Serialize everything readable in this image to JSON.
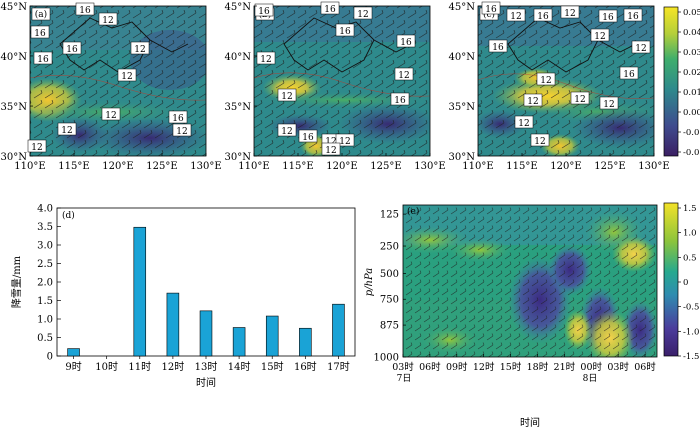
{
  "maps": {
    "panels": [
      {
        "label": "(a)",
        "contours": [
          {
            "text": "16"
          },
          {
            "text": "12"
          },
          {
            "text": "16"
          },
          {
            "text": "16"
          },
          {
            "text": "12"
          },
          {
            "text": "16"
          },
          {
            "text": "12"
          },
          {
            "text": "12"
          },
          {
            "text": "16"
          },
          {
            "text": "12"
          },
          {
            "text": "12"
          },
          {
            "text": "12"
          }
        ]
      },
      {
        "label": "(b)",
        "contours": [
          {
            "text": "16"
          },
          {
            "text": "16"
          },
          {
            "text": "12"
          },
          {
            "text": "16"
          },
          {
            "text": "12"
          },
          {
            "text": "16"
          },
          {
            "text": "12"
          },
          {
            "text": "12"
          },
          {
            "text": "16"
          },
          {
            "text": "12"
          },
          {
            "text": "16"
          },
          {
            "text": "12"
          },
          {
            "text": "12"
          },
          {
            "text": "12"
          }
        ]
      },
      {
        "label": "(c)",
        "contours": [
          {
            "text": "16"
          },
          {
            "text": "12"
          },
          {
            "text": "16"
          },
          {
            "text": "12"
          },
          {
            "text": "16"
          },
          {
            "text": "16"
          },
          {
            "text": "12"
          },
          {
            "text": "16"
          },
          {
            "text": "12"
          },
          {
            "text": "16"
          },
          {
            "text": "12"
          },
          {
            "text": "12"
          },
          {
            "text": "12"
          },
          {
            "text": "12"
          },
          {
            "text": "12"
          },
          {
            "text": "12"
          }
        ]
      }
    ],
    "lat_labels": [
      "45°N",
      "40°N",
      "35°N",
      "30°N"
    ],
    "lon_labels": [
      "110°E",
      "115°E",
      "120°E",
      "125°E",
      "130°E"
    ],
    "colorbar_ticks": [
      "0.05",
      "0.04",
      "0.03",
      "0.02",
      "0.01",
      "0.00",
      "-0.01",
      "-0.02"
    ]
  },
  "chart_data": [
    {
      "type": "bar",
      "panel_label": "(d)",
      "categories": [
        "9时",
        "10时",
        "11时",
        "12时",
        "13时",
        "14时",
        "15时",
        "16时",
        "17时"
      ],
      "values": [
        0.2,
        0.0,
        3.48,
        1.7,
        1.22,
        0.77,
        1.08,
        0.75,
        1.4
      ],
      "ylabel": "降雪量/mm",
      "xlabel": "时间",
      "ylim": [
        0,
        4.0
      ],
      "yticks": [
        "0",
        "0.5",
        "1.0",
        "1.5",
        "2.0",
        "2.5",
        "3.0",
        "3.5",
        "4.0"
      ],
      "color": "#1aa3d6"
    },
    {
      "type": "heatmap",
      "panel_label": "(e)",
      "ylabel": "p/hPa",
      "xlabel": "时间",
      "yticks": [
        "125",
        "250",
        "500",
        "750",
        "875",
        "1000"
      ],
      "xticks": [
        "03时",
        "06时",
        "09时",
        "12时",
        "15时",
        "18时",
        "21时",
        "00时",
        "03时",
        "06时"
      ],
      "date_labels": [
        {
          "text": "7日"
        },
        {
          "text": "8日"
        }
      ],
      "colorbar_ticks": [
        "1.5",
        "1.0",
        "0.5",
        "0",
        "-0.5",
        "-1.0",
        "-1.5"
      ],
      "colorbar_range": [
        -1.5,
        1.5
      ]
    }
  ]
}
